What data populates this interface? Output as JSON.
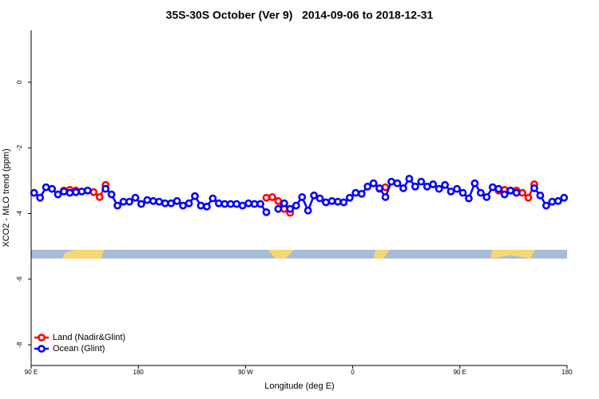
{
  "chart_data": {
    "type": "line",
    "title": "35S-30S October (Ver 9)   2014-09-06 to 2018-12-31",
    "x_label": "Longitude (deg E)",
    "y_label": "XCO2 - MLO trend (ppm)",
    "xlim": [
      90,
      540
    ],
    "xticks": [
      {
        "value": 90,
        "label": "90 E"
      },
      180,
      {
        "value": 270,
        "label": "90 W"
      },
      {
        "value": 360,
        "label": "0"
      },
      {
        "value": 450,
        "label": "90 E"
      },
      {
        "value": 540,
        "label": "180"
      }
    ],
    "ylim": [
      -8.63,
      1.58
    ],
    "yticks": [
      -8,
      -6,
      -4,
      -2,
      0
    ],
    "legend": "bottom-left",
    "x": [
      92.5,
      97.5,
      102.5,
      107.5,
      112.5,
      117.5,
      122.5,
      127.5,
      132.5,
      137.5,
      142.5,
      147.5,
      152.5,
      157.5,
      162.5,
      167.5,
      172.5,
      177.5,
      182.5,
      187.5,
      192.5,
      197.5,
      202.5,
      207.5,
      212.5,
      217.5,
      222.5,
      227.5,
      232.5,
      237.5,
      242.5,
      247.5,
      252.5,
      257.5,
      262.5,
      267.5,
      272.5,
      277.5,
      282.5,
      287.5,
      292.5,
      297.5,
      302.5,
      307.5,
      312.5,
      317.5,
      322.5,
      327.5,
      332.5,
      337.5,
      342.5,
      347.5,
      352.5,
      357.5,
      362.5,
      367.5,
      372.5,
      377.5,
      382.5,
      387.5,
      392.5,
      397.5,
      402.5,
      407.5,
      412.5,
      417.5,
      422.5,
      427.5,
      432.5,
      437.5,
      442.5,
      447.5,
      452.5,
      457.5,
      462.5,
      467.5,
      472.5,
      477.5,
      482.5,
      487.5,
      492.5,
      497.5,
      502.5,
      507.5,
      512.5,
      517.5,
      522.5,
      527.5,
      532.5,
      537.5
    ],
    "series": [
      {
        "name": "Land (Nadir&Glint)",
        "color": "#ff0000",
        "values": [
          null,
          null,
          null,
          null,
          null,
          -3.3,
          -3.28,
          -3.3,
          null,
          null,
          -3.35,
          -3.5,
          -3.13,
          null,
          null,
          null,
          null,
          null,
          null,
          null,
          null,
          null,
          null,
          null,
          null,
          null,
          null,
          null,
          null,
          null,
          null,
          null,
          null,
          null,
          null,
          null,
          null,
          null,
          null,
          -3.52,
          -3.5,
          -3.62,
          -3.86,
          -3.98,
          null,
          null,
          null,
          null,
          null,
          null,
          null,
          null,
          null,
          null,
          null,
          null,
          null,
          -3.08,
          -3.25,
          -3.2,
          null,
          null,
          null,
          null,
          null,
          null,
          null,
          null,
          null,
          null,
          null,
          null,
          null,
          null,
          null,
          null,
          null,
          null,
          -3.3,
          -3.28,
          -3.3,
          -3.3,
          -3.37,
          -3.52,
          -3.11,
          null,
          null,
          null,
          null,
          null
        ]
      },
      {
        "name": "Ocean (Glint)",
        "color": "#0000ff",
        "values": [
          -3.37,
          -3.52,
          -3.2,
          -3.25,
          -3.42,
          -3.33,
          -3.37,
          -3.35,
          -3.33,
          -3.3,
          null,
          null,
          -3.25,
          -3.42,
          -3.76,
          -3.64,
          -3.64,
          -3.52,
          -3.71,
          -3.59,
          -3.62,
          -3.64,
          -3.69,
          -3.69,
          -3.62,
          -3.76,
          -3.69,
          -3.47,
          -3.76,
          -3.79,
          -3.54,
          -3.69,
          -3.71,
          -3.71,
          -3.71,
          -3.76,
          -3.69,
          -3.71,
          -3.71,
          -3.96,
          null,
          -3.86,
          -3.69,
          -3.86,
          -3.76,
          -3.5,
          -3.91,
          -3.45,
          -3.54,
          -3.66,
          -3.62,
          -3.64,
          -3.66,
          -3.52,
          -3.37,
          -3.4,
          -3.18,
          -3.08,
          -3.23,
          -3.5,
          -3.03,
          -3.08,
          -3.23,
          -2.94,
          -3.18,
          -3.03,
          -3.18,
          -3.11,
          -3.25,
          -3.13,
          -3.33,
          -3.25,
          -3.37,
          -3.54,
          -3.08,
          -3.37,
          -3.5,
          -3.2,
          -3.25,
          -3.42,
          -3.3,
          -3.37,
          null,
          null,
          -3.23,
          -3.45,
          -3.76,
          -3.64,
          -3.62,
          -3.52
        ]
      }
    ]
  }
}
